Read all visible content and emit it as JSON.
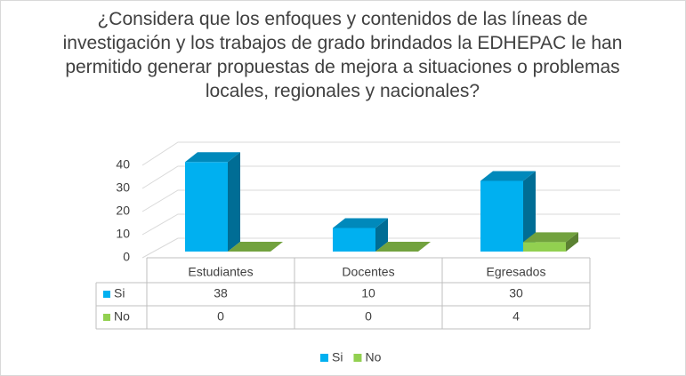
{
  "chart_data": {
    "type": "bar3d",
    "title": "¿Considera que los enfoques y contenidos de las líneas de investigación y los trabajos de grado brindados la EDHEPAC le han permitido generar propuestas de mejora a situaciones o problemas locales, regionales y nacionales?",
    "categories": [
      "Estudiantes",
      "Docentes",
      "Egresados"
    ],
    "series": [
      {
        "name": "Si",
        "color": "#00b0f0",
        "values": [
          38,
          10,
          30
        ]
      },
      {
        "name": "No",
        "color": "#92d050",
        "values": [
          0,
          0,
          4
        ]
      }
    ],
    "ylim": [
      0,
      40
    ],
    "yticks": [
      0,
      10,
      20,
      30,
      40
    ],
    "grid": true,
    "legend": "bottom",
    "data_table": true
  }
}
